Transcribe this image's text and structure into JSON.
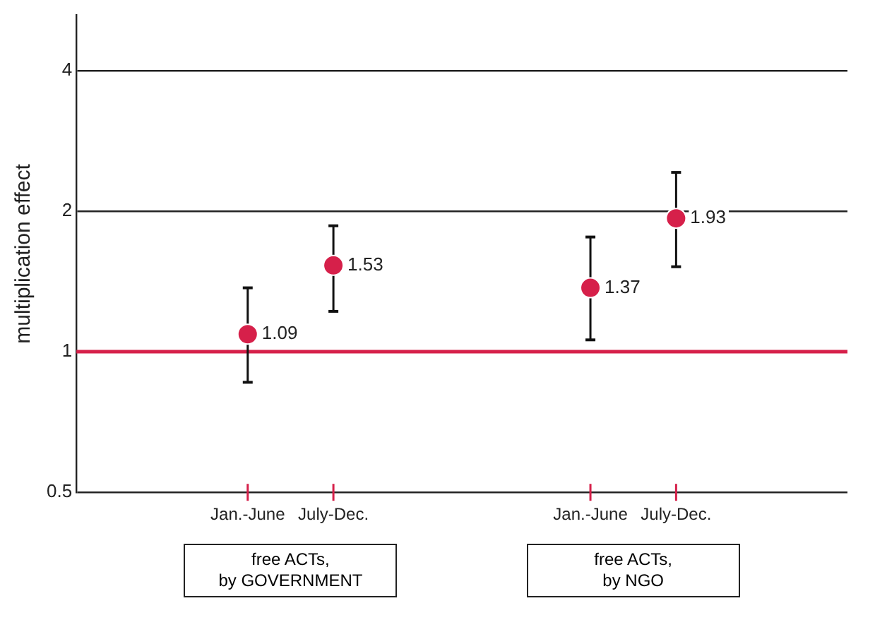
{
  "chart_data": {
    "type": "scatter",
    "ylabel": "multiplication effect",
    "categories": [
      null,
      null,
      "Jan.-June",
      "July-Dec.",
      null,
      null,
      "Jan.-June",
      "July-Dec.",
      null,
      null
    ],
    "values": [
      null,
      null,
      1.09,
      1.53,
      null,
      null,
      1.37,
      1.93,
      null,
      null
    ],
    "errors": [
      null,
      null,
      [
        0.86,
        1.37
      ],
      [
        1.22,
        1.86
      ],
      null,
      null,
      [
        1.06,
        1.76
      ],
      [
        1.52,
        2.42
      ],
      null,
      null
    ],
    "color": "#d6204a",
    "marker": "circle",
    "data_labels": true,
    "log": true,
    "ylim": [
      0.5,
      5.25
    ],
    "yticks": [
      0.5,
      1,
      2,
      4
    ],
    "grid": "y",
    "legend": false,
    "ref_lines": [
      {
        "axis": "y",
        "value": 1,
        "color": "#d6204a"
      }
    ],
    "annotations": [
      "free ACTs,\nby GOVERNMENT",
      "free ACTs,\nby NGO"
    ]
  }
}
